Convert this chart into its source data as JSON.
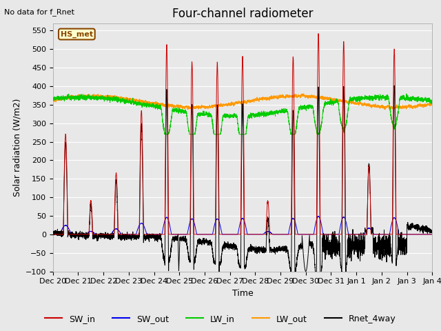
{
  "title": "Four-channel radiometer",
  "top_left_text": "No data for f_Rnet",
  "ylabel": "Solar radiation (W/m2)",
  "xlabel": "Time",
  "ylim": [
    -100,
    570
  ],
  "yticks": [
    -100,
    -50,
    0,
    50,
    100,
    150,
    200,
    250,
    300,
    350,
    400,
    450,
    500,
    550
  ],
  "xtick_labels": [
    "Dec 20",
    "Dec 21",
    "Dec 22",
    "Dec 23",
    "Dec 24",
    "Dec 25",
    "Dec 26",
    "Dec 27",
    "Dec 28",
    "Dec 29",
    "Dec 30",
    "Dec 31",
    "Jan 1",
    "Jan 2",
    "Jan 3",
    "Jan 4"
  ],
  "legend_labels": [
    "SW_in",
    "SW_out",
    "LW_in",
    "LW_out",
    "Rnet_4way"
  ],
  "legend_colors": [
    "#cc0000",
    "#0000ee",
    "#00cc00",
    "#ff9900",
    "#000000"
  ],
  "station_label": "HS_met",
  "station_label_color": "#884400",
  "station_bg_color": "#ffffcc",
  "plot_bg_color": "#e8e8e8",
  "fig_bg_color": "#e8e8e8",
  "grid_color": "#ffffff",
  "title_fontsize": 12,
  "axis_fontsize": 9,
  "tick_fontsize": 8,
  "legend_fontsize": 9
}
